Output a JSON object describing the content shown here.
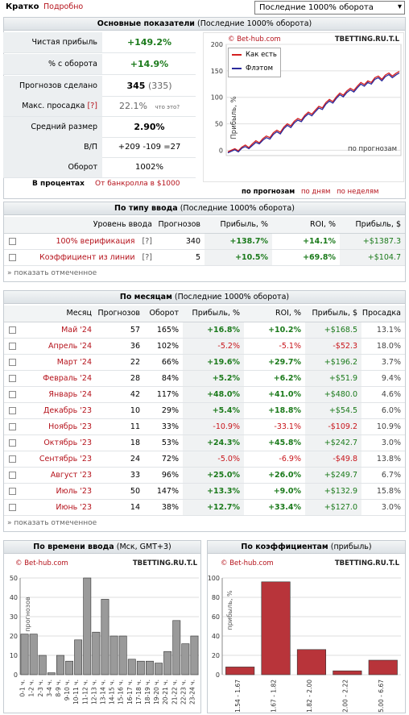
{
  "top": {
    "tab_brief": "Кратко",
    "tab_detailed": "Подробно",
    "period_select": "Последние 1000% оборота"
  },
  "summary": {
    "header_bold": "Основные показатели",
    "header_rest": "(Последние 1000% оборота)",
    "rows": [
      {
        "label": "Чистая прибыль",
        "value": "+149.2%"
      },
      {
        "label": "% с оборота",
        "value": "+14.9%"
      },
      {
        "label": "Прогнозов сделано",
        "value": "345",
        "value2": "(335)"
      },
      {
        "label": "Макс. просадка",
        "tip": "[?]",
        "value": "22.1%",
        "value2": "что это?"
      },
      {
        "label": "Средний размер",
        "value": "2.90%"
      },
      {
        "label": "В/П",
        "value": "+209 -109 =27"
      },
      {
        "label": "Оборот",
        "value": "1002%"
      }
    ],
    "in_percent_label": "В процентах",
    "bankroll_label": "От банкролла в $1000"
  },
  "line_chart": {
    "watermark_left": "© Bet-hub.com",
    "watermark_right": "TBETTING.RU.T.L",
    "ylabel": "Прибыль, %",
    "xlabel": "по прогнозам",
    "yticks": [
      "200",
      "150",
      "100",
      "50",
      "0"
    ],
    "legend": [
      {
        "name": "Как есть",
        "color": "#d42020"
      },
      {
        "name": "Флэтом",
        "color": "#2b2b9c"
      }
    ],
    "tabs": [
      "по прогнозам",
      "по дням",
      "по неделям"
    ]
  },
  "chart_data": [
    {
      "type": "line",
      "ylim": [
        -10,
        200
      ],
      "series": [
        {
          "name": "Как есть",
          "color": "#d42020",
          "values": [
            -3,
            0,
            3,
            -1,
            6,
            10,
            5,
            12,
            18,
            14,
            22,
            27,
            24,
            33,
            38,
            34,
            44,
            50,
            46,
            55,
            60,
            57,
            66,
            72,
            68,
            76,
            83,
            80,
            90,
            96,
            92,
            101,
            108,
            104,
            112,
            117,
            113,
            121,
            128,
            124,
            131,
            128,
            137,
            140,
            134,
            142,
            146,
            140,
            145,
            149
          ]
        },
        {
          "name": "Флэтом",
          "color": "#2b2b9c",
          "values": [
            -5,
            -2,
            1,
            -3,
            4,
            7,
            3,
            9,
            15,
            12,
            19,
            24,
            21,
            30,
            35,
            31,
            41,
            47,
            43,
            52,
            57,
            54,
            63,
            69,
            65,
            73,
            80,
            77,
            87,
            93,
            89,
            98,
            105,
            101,
            109,
            114,
            110,
            118,
            125,
            121,
            128,
            125,
            134,
            137,
            131,
            139,
            143,
            137,
            142,
            146
          ]
        }
      ]
    },
    {
      "type": "bar",
      "title": "По времени ввода",
      "subtitle": "(Мск, GMT+3)",
      "ylabel": "прогнозов",
      "ylim": [
        0,
        50
      ],
      "categories": [
        "0-1 ч.",
        "1-2 ч.",
        "2-3 ч.",
        "3-4 ч.",
        "8-9 ч.",
        "9-10 ч.",
        "10-11 ч.",
        "11-12 ч.",
        "12-13 ч.",
        "13-14 ч.",
        "14-15 ч.",
        "15-16 ч.",
        "16-17 ч.",
        "17-18 ч.",
        "18-19 ч.",
        "19-20 ч.",
        "20-21 ч.",
        "21-22 ч.",
        "22-23 ч.",
        "23-24 ч."
      ],
      "values": [
        21,
        21,
        10,
        1,
        10,
        7,
        18,
        50,
        22,
        39,
        20,
        20,
        8,
        7,
        7,
        6,
        12,
        28,
        16,
        20
      ]
    },
    {
      "type": "bar",
      "title": "По коэффициентам",
      "subtitle": "(прибыль)",
      "ylabel": "прибыль, %",
      "ylim": [
        0,
        100
      ],
      "categories": [
        "1.54 - 1.67",
        "1.67 - 1.82",
        "1.82 - 2.00",
        "2.00 - 2.22",
        "5.00 - 6.67"
      ],
      "values": [
        8,
        96,
        26,
        4,
        15
      ]
    }
  ],
  "by_type": {
    "header_bold": "По типу ввода",
    "header_rest": "(Последние 1000% оборота)",
    "columns": [
      "Уровень ввода",
      "Прогнозов",
      "Прибыль, %",
      "ROI, %",
      "Прибыль, $"
    ],
    "rows": [
      {
        "name": "100% верификация",
        "tip": "[?]",
        "count": "340",
        "profit": "+138.7%",
        "roi": "+14.1%",
        "usd": "+$1387.3"
      },
      {
        "name": "Коэффициент из линии",
        "tip": "[?]",
        "count": "5",
        "profit": "+10.5%",
        "roi": "+69.8%",
        "usd": "+$104.7"
      }
    ],
    "show_selected": "» показать отмеченное"
  },
  "by_month": {
    "header_bold": "По месяцам",
    "header_rest": "(Последние 1000% оборота)",
    "columns": [
      "Месяц",
      "Прогнозов",
      "Оборот",
      "Прибыль, %",
      "ROI, %",
      "Прибыль, $",
      "Просадка"
    ],
    "rows": [
      {
        "month": "Май '24",
        "count": "57",
        "turnover": "165%",
        "profit": "+16.8%",
        "roi": "+10.2%",
        "usd": "+$168.5",
        "dd": "13.1%",
        "neg": false
      },
      {
        "month": "Апрель '24",
        "count": "36",
        "turnover": "102%",
        "profit": "-5.2%",
        "roi": "-5.1%",
        "usd": "-$52.3",
        "dd": "18.0%",
        "neg": true
      },
      {
        "month": "Март '24",
        "count": "22",
        "turnover": "66%",
        "profit": "+19.6%",
        "roi": "+29.7%",
        "usd": "+$196.2",
        "dd": "3.7%",
        "neg": false
      },
      {
        "month": "Февраль '24",
        "count": "28",
        "turnover": "84%",
        "profit": "+5.2%",
        "roi": "+6.2%",
        "usd": "+$51.9",
        "dd": "9.4%",
        "neg": false
      },
      {
        "month": "Январь '24",
        "count": "42",
        "turnover": "117%",
        "profit": "+48.0%",
        "roi": "+41.0%",
        "usd": "+$480.0",
        "dd": "4.6%",
        "neg": false
      },
      {
        "month": "Декабрь '23",
        "count": "10",
        "turnover": "29%",
        "profit": "+5.4%",
        "roi": "+18.8%",
        "usd": "+$54.5",
        "dd": "6.0%",
        "neg": false
      },
      {
        "month": "Ноябрь '23",
        "count": "11",
        "turnover": "33%",
        "profit": "-10.9%",
        "roi": "-33.1%",
        "usd": "-$109.2",
        "dd": "10.9%",
        "neg": true
      },
      {
        "month": "Октябрь '23",
        "count": "18",
        "turnover": "53%",
        "profit": "+24.3%",
        "roi": "+45.8%",
        "usd": "+$242.7",
        "dd": "3.0%",
        "neg": false
      },
      {
        "month": "Сентябрь '23",
        "count": "24",
        "turnover": "72%",
        "profit": "-5.0%",
        "roi": "-6.9%",
        "usd": "-$49.8",
        "dd": "13.8%",
        "neg": true
      },
      {
        "month": "Август '23",
        "count": "33",
        "turnover": "96%",
        "profit": "+25.0%",
        "roi": "+26.0%",
        "usd": "+$249.7",
        "dd": "6.7%",
        "neg": false
      },
      {
        "month": "Июль '23",
        "count": "50",
        "turnover": "147%",
        "profit": "+13.3%",
        "roi": "+9.0%",
        "usd": "+$132.9",
        "dd": "15.8%",
        "neg": false
      },
      {
        "month": "Июнь '23",
        "count": "14",
        "turnover": "38%",
        "profit": "+12.7%",
        "roi": "+33.4%",
        "usd": "+$127.0",
        "dd": "3.0%",
        "neg": false
      }
    ],
    "show_selected": "» показать отмеченное"
  },
  "time_chart": {
    "watermark_left": "© Bet-hub.com",
    "watermark_right": "TBETTING.RU.T.L",
    "yticks": [
      "50",
      "40",
      "30",
      "20",
      "10",
      "0"
    ]
  },
  "odds_chart": {
    "watermark_left": "© Bet-hub.com",
    "watermark_right": "TBETTING.RU.T.L",
    "yticks": [
      "100",
      "80",
      "60",
      "40",
      "20",
      "0"
    ]
  },
  "colors": {
    "positive": "#1b7a1b",
    "negative": "#c8151b",
    "link": "#b5121b",
    "bar_gray": "#8c8c8c",
    "bar_red": "#b8343a"
  }
}
